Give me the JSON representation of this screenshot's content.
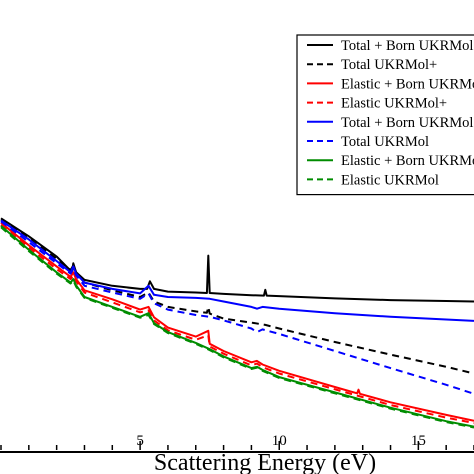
{
  "chart_data": {
    "type": "line",
    "title": "",
    "xlabel": "Scattering Energy (eV)",
    "ylabel": "",
    "xlim": [
      0,
      17
    ],
    "ylim": [
      0,
      1
    ],
    "x_ticks": [
      5,
      10,
      15
    ],
    "grid": false,
    "legend_position": "top-right",
    "colors": {
      "black": "#000000",
      "red": "#ff0000",
      "blue": "#0000ff",
      "green": "#008c00"
    },
    "series": [
      {
        "name": "Total + Born UKRMol+",
        "color": "#000000",
        "dash": "solid",
        "points": [
          [
            0,
            0.515
          ],
          [
            1,
            0.475
          ],
          [
            2,
            0.43
          ],
          [
            2.4,
            0.405
          ],
          [
            2.55,
            0.395
          ],
          [
            2.6,
            0.415
          ],
          [
            2.7,
            0.395
          ],
          [
            3,
            0.378
          ],
          [
            4,
            0.365
          ],
          [
            5,
            0.358
          ],
          [
            5.25,
            0.358
          ],
          [
            5.35,
            0.375
          ],
          [
            5.5,
            0.358
          ],
          [
            6,
            0.352
          ],
          [
            7,
            0.35
          ],
          [
            7.4,
            0.349
          ],
          [
            7.45,
            0.432
          ],
          [
            7.5,
            0.349
          ],
          [
            8,
            0.347
          ],
          [
            9,
            0.344
          ],
          [
            9.45,
            0.343
          ],
          [
            9.5,
            0.356
          ],
          [
            9.55,
            0.343
          ],
          [
            10,
            0.342
          ],
          [
            12,
            0.337
          ],
          [
            14,
            0.333
          ],
          [
            16,
            0.331
          ],
          [
            17,
            0.33
          ]
        ]
      },
      {
        "name": "Total UKRMol+",
        "color": "#000000",
        "dash": "dashed",
        "points": [
          [
            0,
            0.512
          ],
          [
            1,
            0.47
          ],
          [
            2,
            0.425
          ],
          [
            2.5,
            0.4
          ],
          [
            2.6,
            0.41
          ],
          [
            2.7,
            0.395
          ],
          [
            3,
            0.372
          ],
          [
            4,
            0.355
          ],
          [
            5,
            0.34
          ],
          [
            5.3,
            0.35
          ],
          [
            5.5,
            0.33
          ],
          [
            6,
            0.318
          ],
          [
            7,
            0.308
          ],
          [
            7.4,
            0.305
          ],
          [
            7.45,
            0.318
          ],
          [
            7.5,
            0.303
          ],
          [
            8,
            0.292
          ],
          [
            9,
            0.283
          ],
          [
            9.5,
            0.278
          ],
          [
            10,
            0.27
          ],
          [
            12,
            0.24
          ],
          [
            14,
            0.212
          ],
          [
            16,
            0.185
          ],
          [
            17,
            0.17
          ]
        ]
      },
      {
        "name": "Elastic + Born UKRMol+",
        "color": "#ff0000",
        "dash": "solid",
        "points": [
          [
            0,
            0.505
          ],
          [
            1,
            0.455
          ],
          [
            2,
            0.408
          ],
          [
            2.5,
            0.385
          ],
          [
            2.6,
            0.395
          ],
          [
            2.7,
            0.38
          ],
          [
            3,
            0.355
          ],
          [
            4,
            0.335
          ],
          [
            5,
            0.312
          ],
          [
            5.3,
            0.318
          ],
          [
            5.5,
            0.295
          ],
          [
            6,
            0.272
          ],
          [
            7,
            0.252
          ],
          [
            7.45,
            0.265
          ],
          [
            7.5,
            0.236
          ],
          [
            8,
            0.22
          ],
          [
            9,
            0.195
          ],
          [
            9.2,
            0.198
          ],
          [
            9.4,
            0.19
          ],
          [
            10,
            0.176
          ],
          [
            12,
            0.14
          ],
          [
            12.8,
            0.126
          ],
          [
            12.85,
            0.134
          ],
          [
            12.9,
            0.125
          ],
          [
            14,
            0.106
          ],
          [
            16,
            0.078
          ],
          [
            17,
            0.065
          ]
        ]
      },
      {
        "name": "Elastic UKRMol+",
        "color": "#ff0000",
        "dash": "dashed",
        "points": [
          [
            0,
            0.5
          ],
          [
            1,
            0.45
          ],
          [
            2,
            0.402
          ],
          [
            2.5,
            0.38
          ],
          [
            2.6,
            0.388
          ],
          [
            2.7,
            0.375
          ],
          [
            3,
            0.35
          ],
          [
            4,
            0.328
          ],
          [
            5,
            0.306
          ],
          [
            5.3,
            0.31
          ],
          [
            5.5,
            0.288
          ],
          [
            6,
            0.266
          ],
          [
            7,
            0.245
          ],
          [
            7.45,
            0.255
          ],
          [
            7.5,
            0.23
          ],
          [
            8,
            0.214
          ],
          [
            9,
            0.188
          ],
          [
            9.2,
            0.192
          ],
          [
            9.4,
            0.184
          ],
          [
            10,
            0.17
          ],
          [
            12,
            0.135
          ],
          [
            14,
            0.1
          ],
          [
            16,
            0.072
          ],
          [
            17,
            0.06
          ]
        ]
      },
      {
        "name": "Total + Born UKRMol",
        "color": "#0000ff",
        "dash": "solid",
        "points": [
          [
            0,
            0.51
          ],
          [
            1,
            0.468
          ],
          [
            2,
            0.42
          ],
          [
            2.5,
            0.395
          ],
          [
            2.6,
            0.408
          ],
          [
            2.7,
            0.392
          ],
          [
            3,
            0.372
          ],
          [
            4,
            0.358
          ],
          [
            5,
            0.348
          ],
          [
            5.3,
            0.365
          ],
          [
            5.5,
            0.345
          ],
          [
            6,
            0.34
          ],
          [
            7,
            0.338
          ],
          [
            7.5,
            0.336
          ],
          [
            8,
            0.33
          ],
          [
            9,
            0.318
          ],
          [
            9.2,
            0.314
          ],
          [
            9.4,
            0.318
          ],
          [
            10,
            0.314
          ],
          [
            12,
            0.304
          ],
          [
            14,
            0.296
          ],
          [
            16,
            0.29
          ],
          [
            17,
            0.287
          ]
        ]
      },
      {
        "name": "Total UKRMol",
        "color": "#0000ff",
        "dash": "dashed",
        "points": [
          [
            0,
            0.508
          ],
          [
            1,
            0.462
          ],
          [
            2,
            0.415
          ],
          [
            2.5,
            0.392
          ],
          [
            2.6,
            0.402
          ],
          [
            2.7,
            0.388
          ],
          [
            3,
            0.365
          ],
          [
            4,
            0.35
          ],
          [
            5,
            0.336
          ],
          [
            5.3,
            0.348
          ],
          [
            5.5,
            0.326
          ],
          [
            6,
            0.312
          ],
          [
            7,
            0.3
          ],
          [
            7.5,
            0.296
          ],
          [
            8,
            0.288
          ],
          [
            9,
            0.27
          ],
          [
            9.2,
            0.262
          ],
          [
            9.4,
            0.268
          ],
          [
            10,
            0.258
          ],
          [
            12,
            0.22
          ],
          [
            14,
            0.182
          ],
          [
            16,
            0.145
          ],
          [
            17,
            0.125
          ]
        ]
      },
      {
        "name": "Elastic + Born UKRMol",
        "color": "#008c00",
        "dash": "solid",
        "points": [
          [
            0,
            0.498
          ],
          [
            1,
            0.445
          ],
          [
            2,
            0.395
          ],
          [
            2.5,
            0.372
          ],
          [
            2.6,
            0.38
          ],
          [
            2.7,
            0.366
          ],
          [
            3,
            0.34
          ],
          [
            4,
            0.318
          ],
          [
            5,
            0.296
          ],
          [
            5.3,
            0.304
          ],
          [
            5.5,
            0.282
          ],
          [
            6,
            0.262
          ],
          [
            7,
            0.238
          ],
          [
            7.5,
            0.224
          ],
          [
            8,
            0.208
          ],
          [
            9,
            0.182
          ],
          [
            9.2,
            0.185
          ],
          [
            9.4,
            0.178
          ],
          [
            10,
            0.162
          ],
          [
            12,
            0.128
          ],
          [
            14,
            0.094
          ],
          [
            16,
            0.064
          ],
          [
            17,
            0.052
          ]
        ]
      },
      {
        "name": "Elastic UKRMol",
        "color": "#008c00",
        "dash": "dashed",
        "points": [
          [
            0,
            0.495
          ],
          [
            1,
            0.442
          ],
          [
            2,
            0.392
          ],
          [
            2.5,
            0.37
          ],
          [
            2.6,
            0.377
          ],
          [
            2.7,
            0.363
          ],
          [
            3,
            0.338
          ],
          [
            4,
            0.316
          ],
          [
            5,
            0.294
          ],
          [
            5.3,
            0.3
          ],
          [
            5.5,
            0.28
          ],
          [
            6,
            0.26
          ],
          [
            7,
            0.236
          ],
          [
            7.5,
            0.222
          ],
          [
            8,
            0.206
          ],
          [
            9,
            0.18
          ],
          [
            9.2,
            0.183
          ],
          [
            9.4,
            0.176
          ],
          [
            10,
            0.16
          ],
          [
            12,
            0.126
          ],
          [
            14,
            0.092
          ],
          [
            16,
            0.062
          ],
          [
            17,
            0.05
          ]
        ]
      }
    ]
  }
}
